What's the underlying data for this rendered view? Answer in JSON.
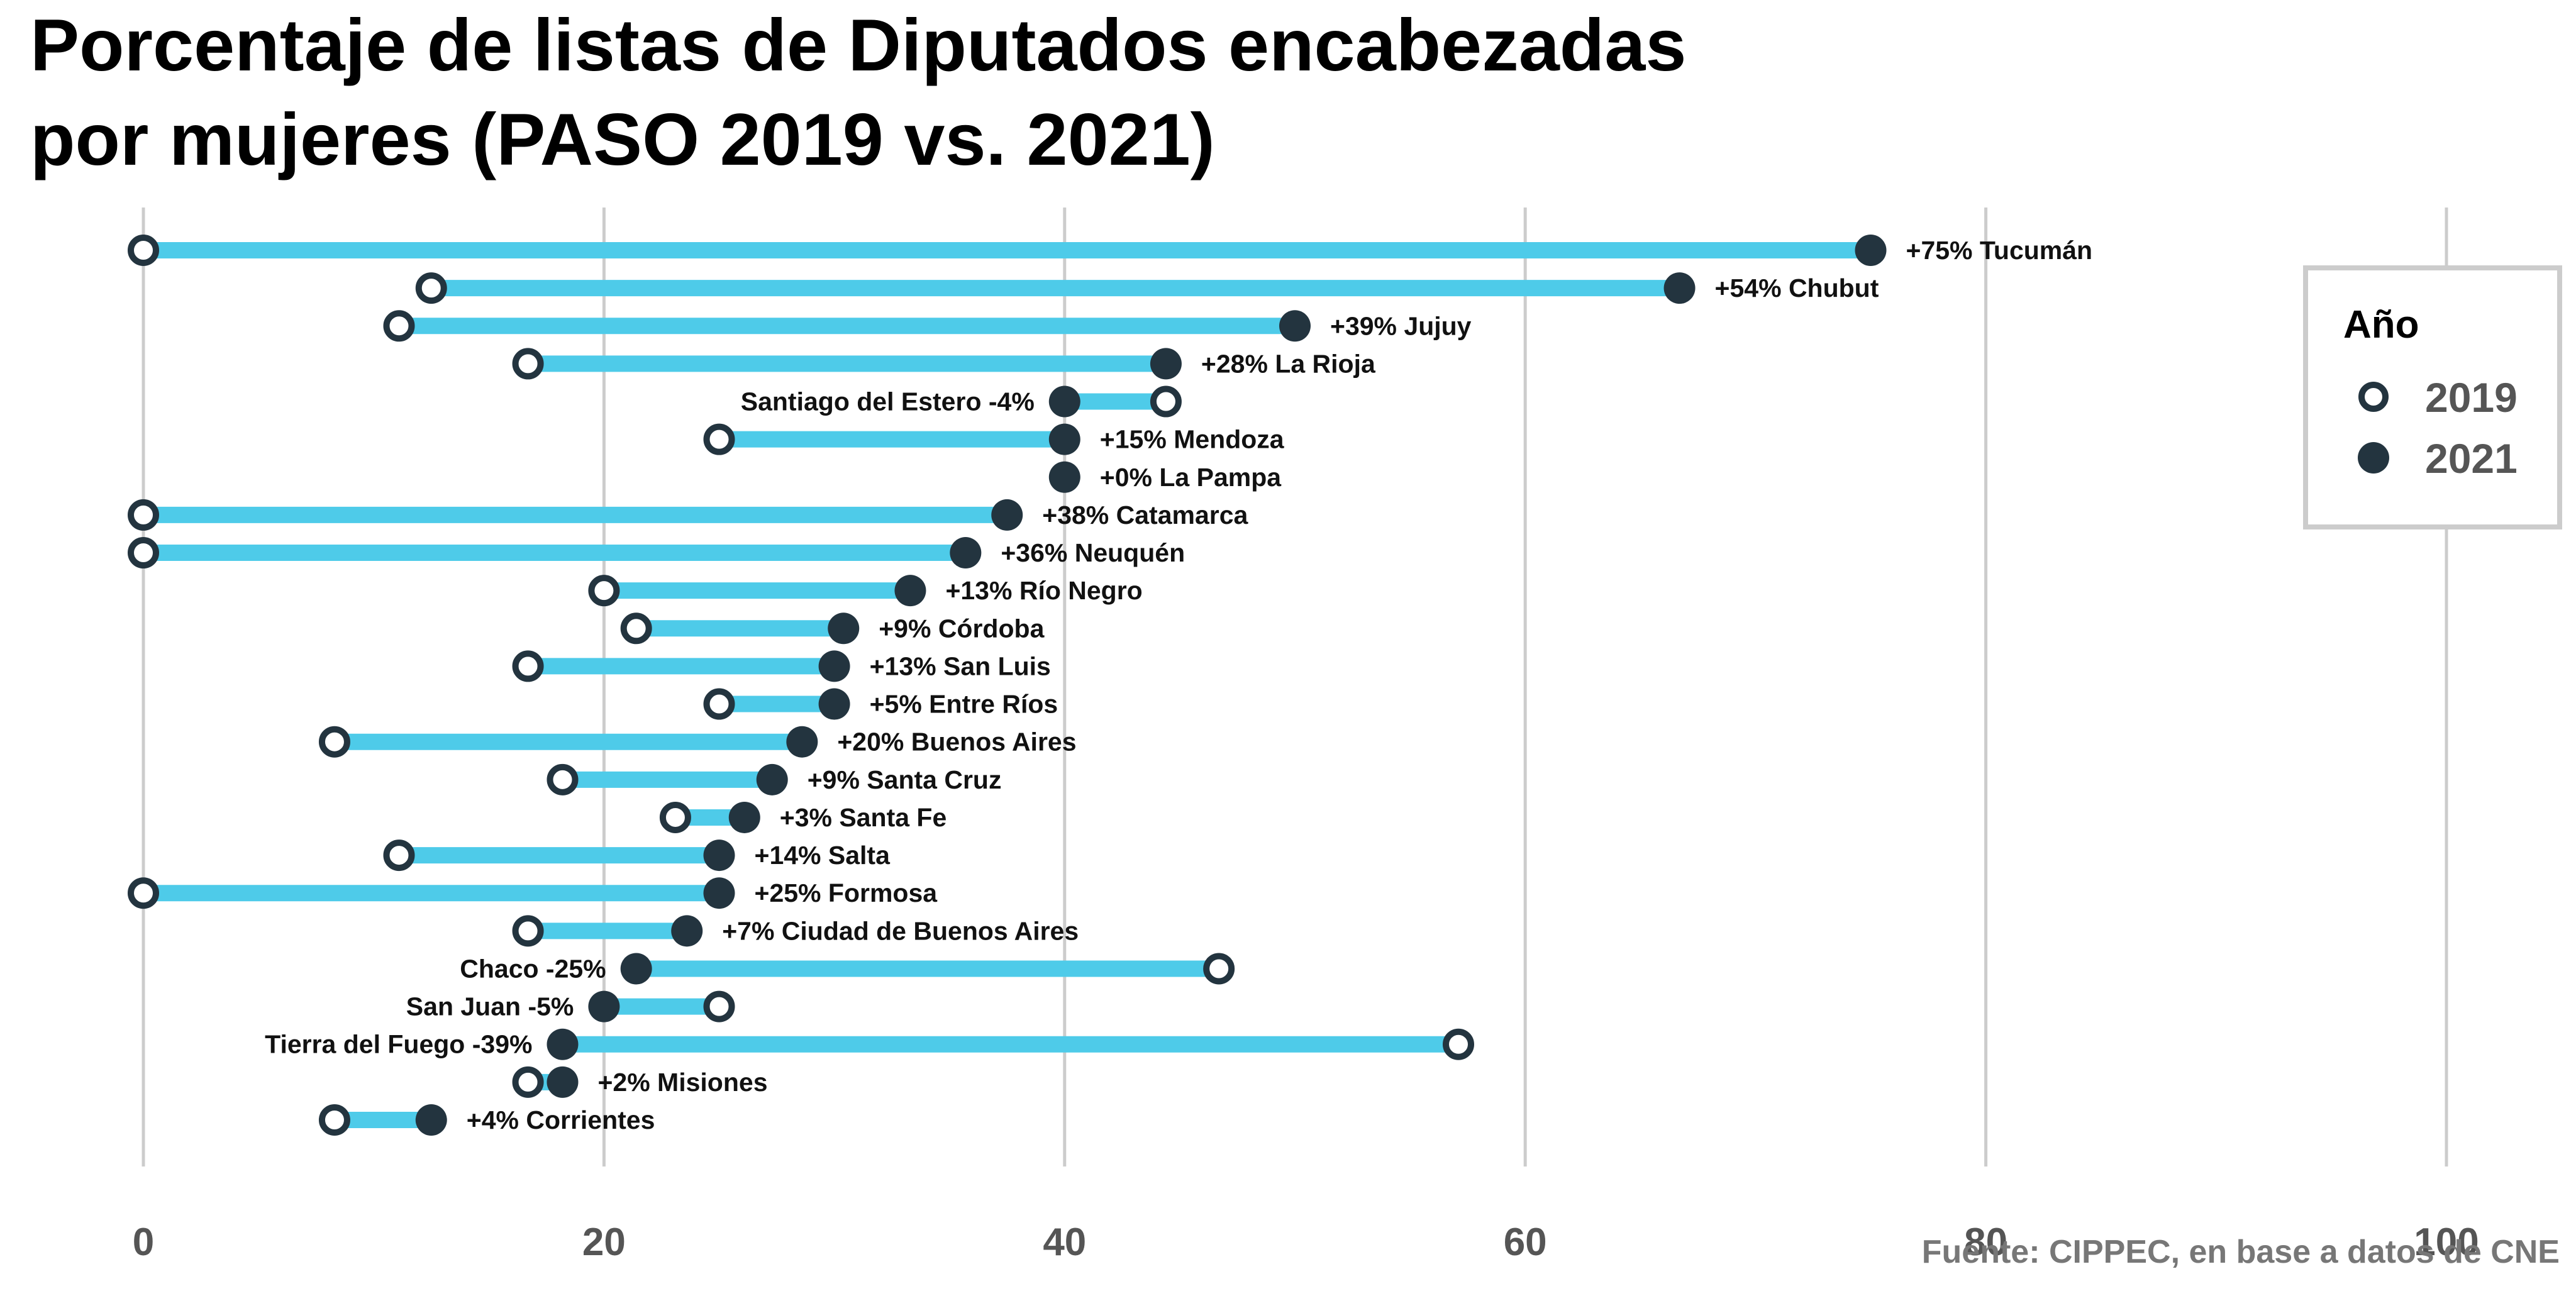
{
  "chart_data": {
    "type": "dumbbell",
    "title": [
      "Porcentaje de listas de Diputados encabezadas",
      "por mujeres (PASO 2019 vs. 2021)"
    ],
    "caption": "Fuente: CIPPEC, en base a datos de CNE",
    "xlim": [
      0,
      100
    ],
    "x_ticks": [
      "0",
      "20",
      "40",
      "60",
      "80",
      "100"
    ],
    "grid": "vertical",
    "legend": {
      "title": "Año",
      "position": "right",
      "entries": [
        "2019",
        "2021"
      ]
    },
    "colors": {
      "segment": "#4ecbe9",
      "point_2021": "#23343f",
      "point_2019_fill": "#ffffff",
      "point_2019_stroke": "#23343f",
      "grid": "#cccccc",
      "axis_text": "#555555",
      "caption": "#777777",
      "legend_border": "#cccccc"
    },
    "rows": [
      {
        "province": "Tucumán",
        "v2019": 0,
        "v2021": 75,
        "label": "+75% Tucumán"
      },
      {
        "province": "Chubut",
        "v2019": 12.5,
        "v2021": 66.7,
        "label": "+54% Chubut"
      },
      {
        "province": "Jujuy",
        "v2019": 11.1,
        "v2021": 50,
        "label": "+39% Jujuy"
      },
      {
        "province": "La Rioja",
        "v2019": 16.7,
        "v2021": 44.4,
        "label": "+28% La Rioja"
      },
      {
        "province": "Santiago del Estero",
        "v2019": 44.4,
        "v2021": 40,
        "label": "Santiago del Estero -4%"
      },
      {
        "province": "Mendoza",
        "v2019": 25,
        "v2021": 40,
        "label": "+15% Mendoza"
      },
      {
        "province": "La Pampa",
        "v2019": 40,
        "v2021": 40,
        "label": "+0% La Pampa"
      },
      {
        "province": "Catamarca",
        "v2019": 0,
        "v2021": 37.5,
        "label": "+38% Catamarca"
      },
      {
        "province": "Neuquén",
        "v2019": 0,
        "v2021": 35.7,
        "label": "+36% Neuquén"
      },
      {
        "province": "Río Negro",
        "v2019": 20,
        "v2021": 33.3,
        "label": "+13% Río Negro"
      },
      {
        "province": "Córdoba",
        "v2019": 21.4,
        "v2021": 30.4,
        "label": "+9% Córdoba"
      },
      {
        "province": "San Luis",
        "v2019": 16.7,
        "v2021": 30,
        "label": "+13% San Luis"
      },
      {
        "province": "Entre Ríos",
        "v2019": 25,
        "v2021": 30,
        "label": "+5% Entre Ríos"
      },
      {
        "province": "Buenos Aires",
        "v2019": 8.3,
        "v2021": 28.6,
        "label": "+20% Buenos Aires"
      },
      {
        "province": "Santa Cruz",
        "v2019": 18.2,
        "v2021": 27.3,
        "label": "+9% Santa Cruz"
      },
      {
        "province": "Santa Fe",
        "v2019": 23.1,
        "v2021": 26.1,
        "label": "+3% Santa Fe"
      },
      {
        "province": "Salta",
        "v2019": 11.1,
        "v2021": 25,
        "label": "+14% Salta"
      },
      {
        "province": "Formosa",
        "v2019": 0,
        "v2021": 25,
        "label": "+25% Formosa"
      },
      {
        "province": "Ciudad de Buenos Aires",
        "v2019": 16.7,
        "v2021": 23.6,
        "label": "+7% Ciudad de Buenos Aires"
      },
      {
        "province": "Chaco",
        "v2019": 46.7,
        "v2021": 21.4,
        "label": "Chaco -25%"
      },
      {
        "province": "San Juan",
        "v2019": 25,
        "v2021": 20,
        "label": "San Juan -5%"
      },
      {
        "province": "Tierra del Fuego",
        "v2019": 57.1,
        "v2021": 18.2,
        "label": "Tierra del Fuego -39%"
      },
      {
        "province": "Misiones",
        "v2019": 16.7,
        "v2021": 18.2,
        "label": "+2% Misiones"
      },
      {
        "province": "Corrientes",
        "v2019": 8.3,
        "v2021": 12.5,
        "label": "+4% Corrientes"
      }
    ]
  }
}
